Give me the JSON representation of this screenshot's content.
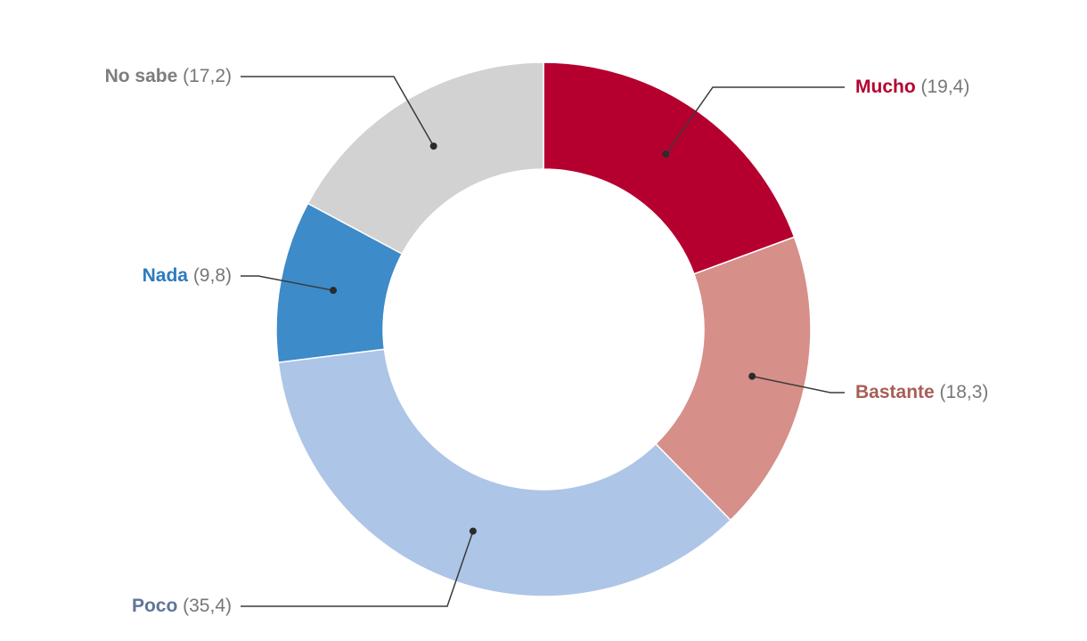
{
  "chart_data": {
    "type": "pie",
    "variant": "donut",
    "categories": [
      "Mucho",
      "Bastante",
      "Poco",
      "Nada",
      "No sabe"
    ],
    "values": [
      19.4,
      18.3,
      35.4,
      9.8,
      17.2
    ],
    "display_values": [
      "(19,4)",
      "(18,3)",
      "(35,4)",
      "(9,8)",
      "(17,2)"
    ],
    "colors": [
      "#b5002f",
      "#d68f89",
      "#adc5e7",
      "#3d8bc9",
      "#d2d2d2"
    ],
    "label_colors": [
      "#b5002f",
      "#a85e57",
      "#5f7599",
      "#2b7bbf",
      "#7d7d7d"
    ],
    "value_color": "#777777",
    "title": "",
    "legend": "none"
  }
}
